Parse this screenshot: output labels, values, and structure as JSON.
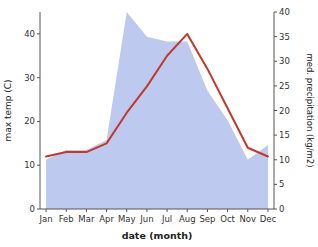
{
  "chart_data": {
    "type": "line",
    "xlabel": "date (month)",
    "ylabel": "max temp (C)",
    "y2label": "med. precipitation (kg/m2)",
    "categories": [
      "Jan",
      "Feb",
      "Mar",
      "Apr",
      "May",
      "Jun",
      "Jul",
      "Aug",
      "Sep",
      "Oct",
      "Nov",
      "Dec"
    ],
    "series": [
      {
        "type": "area",
        "axis": "y2",
        "color": "#bdc9ee",
        "values": [
          10,
          12,
          12,
          14,
          40,
          35,
          34,
          34,
          24,
          18,
          10,
          13
        ]
      },
      {
        "type": "line",
        "color": "#c0392b",
        "values": [
          12,
          13,
          13,
          15,
          22,
          28,
          35,
          40,
          32,
          23,
          14,
          12
        ]
      }
    ],
    "ylim": [
      0,
      45
    ],
    "yticks": [
      0,
      10,
      20,
      30,
      40
    ],
    "y2lim": [
      0,
      40
    ],
    "y2ticks": [
      0,
      5,
      10,
      15,
      20,
      25,
      30,
      35,
      40
    ],
    "grid": false
  }
}
